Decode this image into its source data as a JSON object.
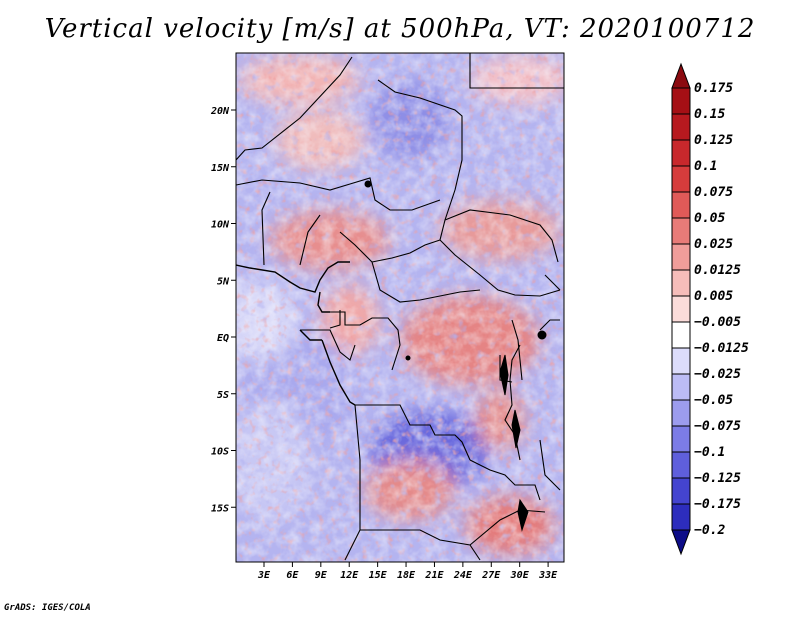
{
  "title": "Vertical velocity [m/s] at 500hPa, VT: 2020100712",
  "credit": "GrADS: IGES/COLA",
  "map": {
    "region": "Central Africa",
    "variable": "Vertical velocity",
    "units": "m/s",
    "level": "500hPa",
    "valid_time": "2020100712",
    "lat_range": [
      -20,
      25
    ],
    "lon_range": [
      0,
      35
    ],
    "lat_ticks": [
      {
        "value": 20,
        "label": "20N"
      },
      {
        "value": 15,
        "label": "15N"
      },
      {
        "value": 10,
        "label": "10N"
      },
      {
        "value": 5,
        "label": "5N"
      },
      {
        "value": 0,
        "label": "EQ"
      },
      {
        "value": -5,
        "label": "5S"
      },
      {
        "value": -10,
        "label": "10S"
      },
      {
        "value": -15,
        "label": "15S"
      }
    ],
    "lon_ticks": [
      {
        "value": 3,
        "label": "3E"
      },
      {
        "value": 6,
        "label": "6E"
      },
      {
        "value": 9,
        "label": "9E"
      },
      {
        "value": 12,
        "label": "12E"
      },
      {
        "value": 15,
        "label": "15E"
      },
      {
        "value": 18,
        "label": "18E"
      },
      {
        "value": 21,
        "label": "21E"
      },
      {
        "value": 24,
        "label": "24E"
      },
      {
        "value": 27,
        "label": "27E"
      },
      {
        "value": 30,
        "label": "30E"
      },
      {
        "value": 33,
        "label": "33E"
      }
    ]
  },
  "colorbar": {
    "levels": [
      {
        "label": "0.175",
        "color": "#a50f15"
      },
      {
        "label": "0.15",
        "color": "#b7191f"
      },
      {
        "label": "0.125",
        "color": "#c8282c"
      },
      {
        "label": "0.1",
        "color": "#d63c3c"
      },
      {
        "label": "0.075",
        "color": "#e05a58"
      },
      {
        "label": "0.05",
        "color": "#e87b78"
      },
      {
        "label": "0.025",
        "color": "#f09d9a"
      },
      {
        "label": "0.0125",
        "color": "#f6bdba"
      },
      {
        "label": "0.005",
        "color": "#fbdcda"
      },
      {
        "label": "−0.005",
        "color": "#ffffff"
      },
      {
        "label": "−0.0125",
        "color": "#dcdcfb"
      },
      {
        "label": "−0.025",
        "color": "#bcbcf5"
      },
      {
        "label": "−0.05",
        "color": "#9c9cee"
      },
      {
        "label": "−0.075",
        "color": "#7c7ce6"
      },
      {
        "label": "−0.1",
        "color": "#5f5fdc"
      },
      {
        "label": "−0.125",
        "color": "#4444cf"
      },
      {
        "label": "−0.175",
        "color": "#2d2dbd"
      },
      {
        "label": "−0.2",
        "color": "#1a1aa6"
      }
    ],
    "top_arrow_color": "#8b0a10",
    "bottom_arrow_color": "#0d0d88"
  }
}
